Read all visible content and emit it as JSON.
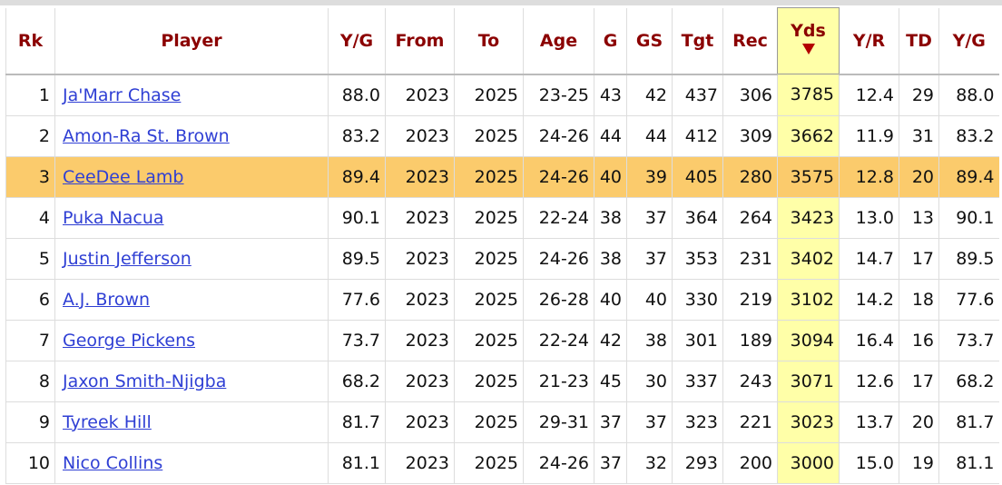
{
  "table": {
    "columns": [
      "Rk",
      "Player",
      "Y/G",
      "From",
      "To",
      "Age",
      "G",
      "GS",
      "Tgt",
      "Rec",
      "Yds",
      "Y/R",
      "TD",
      "Y/G"
    ],
    "rows": [
      [
        "1",
        "Ja'Marr Chase",
        "88.0",
        "2023",
        "2025",
        "23-25",
        "43",
        "42",
        "437",
        "306",
        "3785",
        "12.4",
        "29",
        "88.0"
      ],
      [
        "2",
        "Amon-Ra St. Brown",
        "83.2",
        "2023",
        "2025",
        "24-26",
        "44",
        "44",
        "412",
        "309",
        "3662",
        "11.9",
        "31",
        "83.2"
      ],
      [
        "3",
        "CeeDee Lamb",
        "89.4",
        "2023",
        "2025",
        "24-26",
        "40",
        "39",
        "405",
        "280",
        "3575",
        "12.8",
        "20",
        "89.4"
      ],
      [
        "4",
        "Puka Nacua",
        "90.1",
        "2023",
        "2025",
        "22-24",
        "38",
        "37",
        "364",
        "264",
        "3423",
        "13.0",
        "13",
        "90.1"
      ],
      [
        "5",
        "Justin Jefferson",
        "89.5",
        "2023",
        "2025",
        "24-26",
        "38",
        "37",
        "353",
        "231",
        "3402",
        "14.7",
        "17",
        "89.5"
      ],
      [
        "6",
        "A.J. Brown",
        "77.6",
        "2023",
        "2025",
        "26-28",
        "40",
        "40",
        "330",
        "219",
        "3102",
        "14.2",
        "18",
        "77.6"
      ],
      [
        "7",
        "George Pickens",
        "73.7",
        "2023",
        "2025",
        "22-24",
        "42",
        "38",
        "301",
        "189",
        "3094",
        "16.4",
        "16",
        "73.7"
      ],
      [
        "8",
        "Jaxon Smith-Njigba",
        "68.2",
        "2023",
        "2025",
        "21-23",
        "45",
        "30",
        "337",
        "243",
        "3071",
        "12.6",
        "17",
        "68.2"
      ],
      [
        "9",
        "Tyreek Hill",
        "81.7",
        "2023",
        "2025",
        "29-31",
        "37",
        "37",
        "323",
        "221",
        "3023",
        "13.7",
        "20",
        "81.7"
      ],
      [
        "10",
        "Nico Collins",
        "81.1",
        "2023",
        "2025",
        "24-26",
        "37",
        "32",
        "293",
        "200",
        "3000",
        "15.0",
        "19",
        "81.1"
      ]
    ]
  }
}
